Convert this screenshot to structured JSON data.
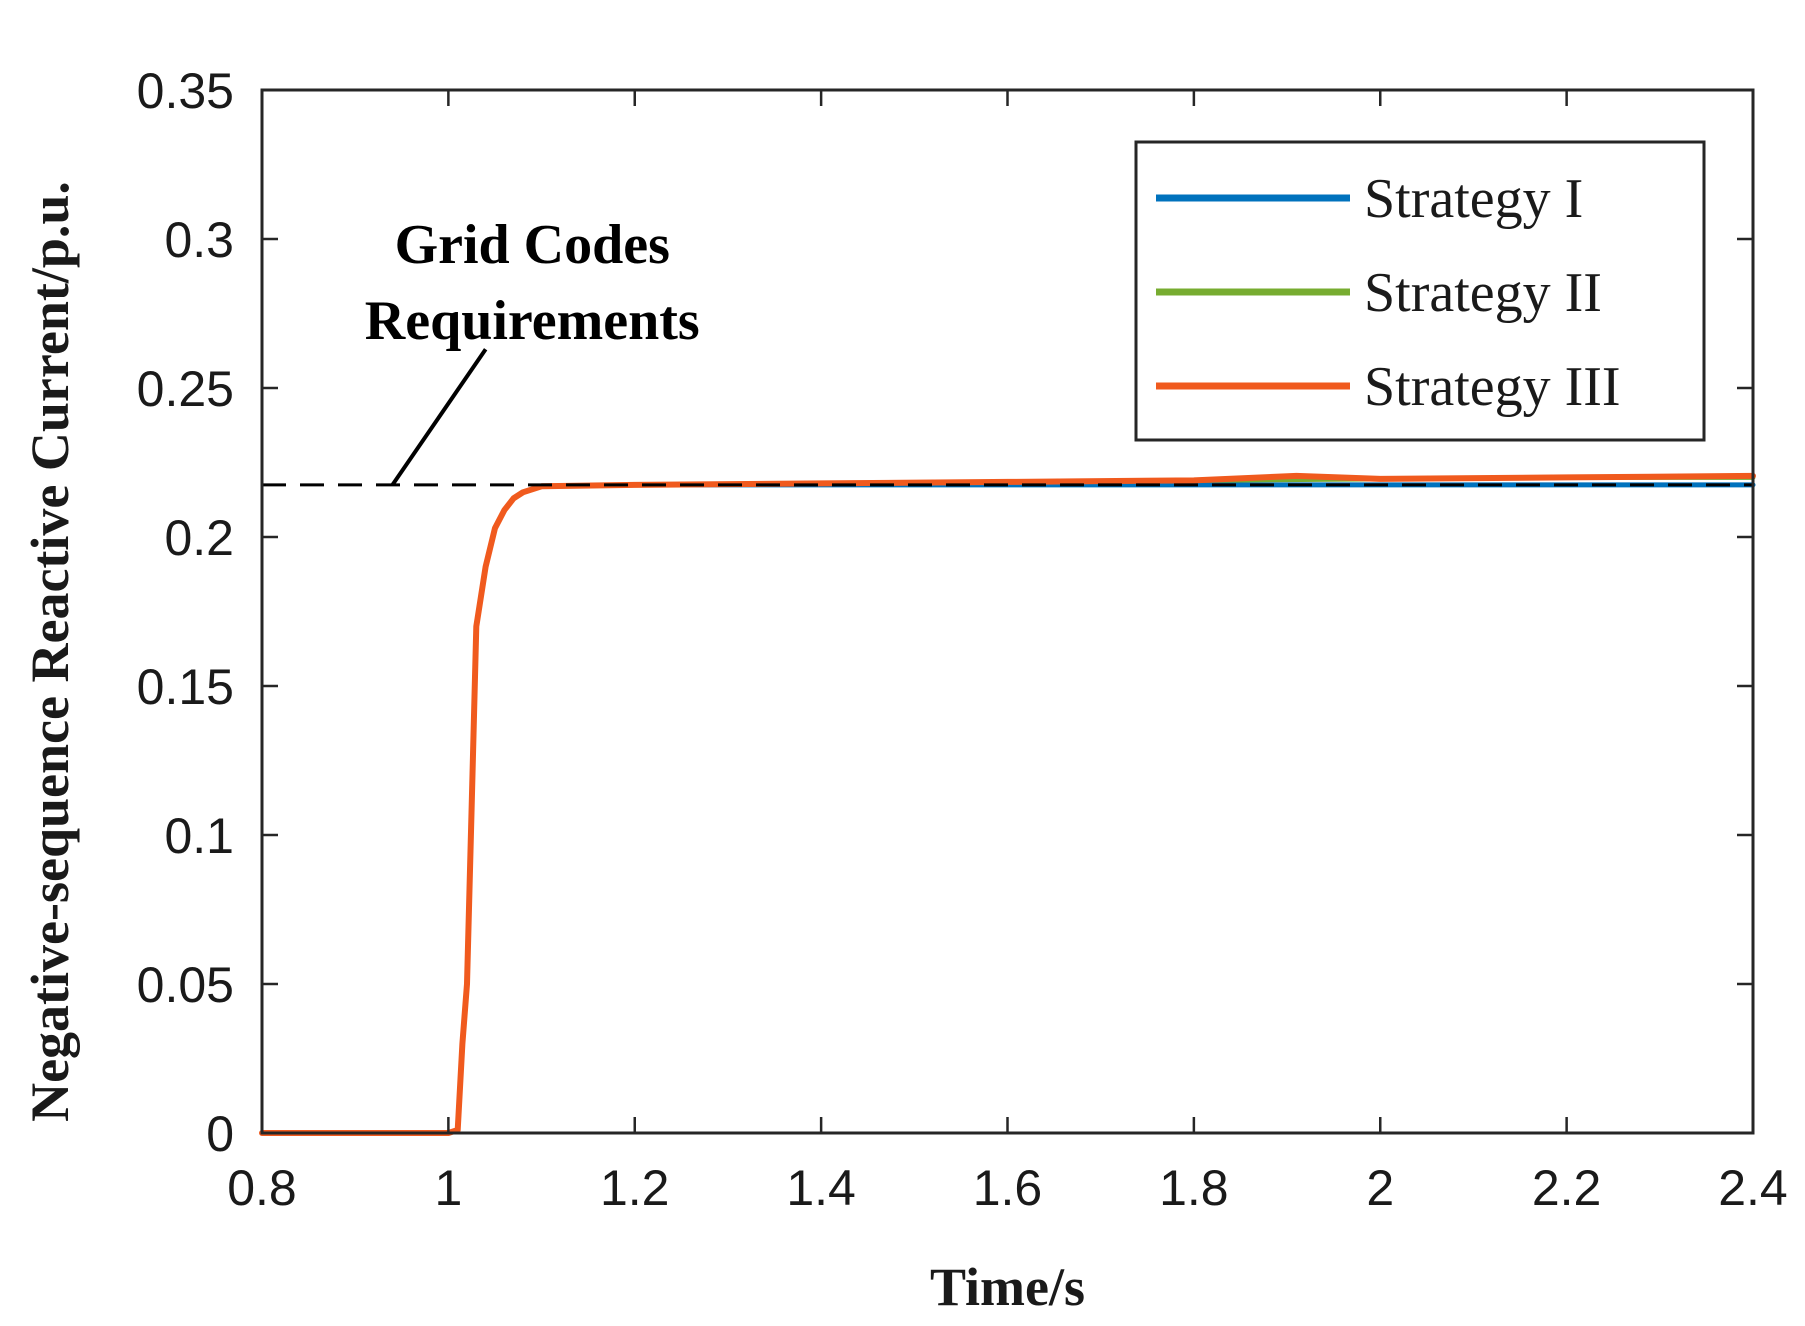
{
  "chart_data": {
    "type": "line",
    "xlabel": "Time/s",
    "ylabel": "Negative-sequence Reactive Current/p.u.",
    "xlim": [
      0.8,
      2.4
    ],
    "ylim": [
      0,
      0.35
    ],
    "xticks": [
      0.8,
      1.0,
      1.2,
      1.4,
      1.6,
      1.8,
      2.0,
      2.2,
      2.4
    ],
    "xtick_labels": [
      "0.8",
      "1",
      "1.2",
      "1.4",
      "1.6",
      "1.8",
      "2",
      "2.2",
      "2.4"
    ],
    "yticks": [
      0,
      0.05,
      0.1,
      0.15,
      0.2,
      0.25,
      0.3,
      0.35
    ],
    "ytick_labels": [
      "0",
      "0.05",
      "0.1",
      "0.15",
      "0.2",
      "0.25",
      "0.3",
      "0.35"
    ],
    "grid": false,
    "legend_position": "top-right",
    "reference_line": {
      "y": 0.2175,
      "x_start": 0.8,
      "x_end": 2.4,
      "style": "dashed",
      "color": "#000000"
    },
    "annotation": {
      "lines": [
        "Grid Codes",
        "Requirements"
      ],
      "text_at": [
        1.09,
        0.292
      ],
      "pointer_from": [
        1.04,
        0.263
      ],
      "pointer_to": [
        0.94,
        0.2175
      ]
    },
    "series": [
      {
        "name": "Strategy I",
        "color": "#0072BD",
        "x": [
          0.8,
          1.0,
          1.01,
          1.015,
          1.02,
          1.025,
          1.03,
          1.04,
          1.05,
          1.06,
          1.07,
          1.08,
          1.1,
          1.2,
          1.4,
          1.6,
          1.8,
          2.0,
          2.2,
          2.4
        ],
        "y": [
          0,
          0,
          0.001,
          0.03,
          0.05,
          0.11,
          0.17,
          0.19,
          0.203,
          0.209,
          0.213,
          0.215,
          0.217,
          0.2175,
          0.2175,
          0.2175,
          0.2175,
          0.2175,
          0.2175,
          0.2175
        ]
      },
      {
        "name": "Strategy II",
        "color": "#77AC30",
        "x": [
          0.8,
          1.0,
          1.01,
          1.015,
          1.02,
          1.025,
          1.03,
          1.04,
          1.05,
          1.06,
          1.07,
          1.08,
          1.1,
          1.2,
          1.4,
          1.6,
          1.8,
          2.0,
          2.2,
          2.4
        ],
        "y": [
          0,
          0,
          0.001,
          0.03,
          0.05,
          0.11,
          0.17,
          0.19,
          0.203,
          0.209,
          0.213,
          0.215,
          0.217,
          0.2175,
          0.218,
          0.2185,
          0.219,
          0.2195,
          0.22,
          0.22
        ]
      },
      {
        "name": "Strategy III",
        "color": "#F05A1E",
        "x": [
          0.8,
          1.0,
          1.01,
          1.015,
          1.02,
          1.025,
          1.03,
          1.04,
          1.05,
          1.06,
          1.07,
          1.08,
          1.1,
          1.2,
          1.4,
          1.6,
          1.8,
          1.91,
          2.0,
          2.2,
          2.4
        ],
        "y": [
          0,
          0,
          0.001,
          0.03,
          0.05,
          0.11,
          0.17,
          0.19,
          0.203,
          0.209,
          0.213,
          0.215,
          0.217,
          0.2175,
          0.218,
          0.2185,
          0.219,
          0.2205,
          0.2195,
          0.22,
          0.2205
        ]
      }
    ]
  }
}
